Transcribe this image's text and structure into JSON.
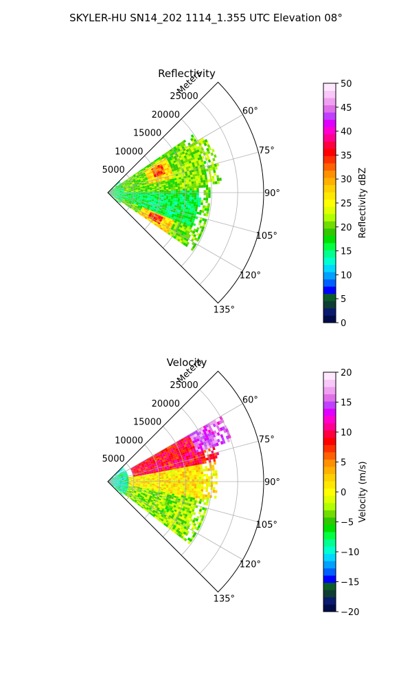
{
  "figure": {
    "title": "SKYLER-HU  SN14_202  1114_1.355 UTC Elevation 08°"
  },
  "chart_data": [
    {
      "type": "heatmap",
      "subtype": "polar-sector",
      "title": "Reflectivity",
      "radial_label": "Meters",
      "r_ticks": [
        "5000",
        "10000",
        "15000",
        "20000",
        "25000"
      ],
      "r_tick_values": [
        5000,
        10000,
        15000,
        20000,
        25000
      ],
      "rlim": [
        0,
        30000
      ],
      "theta_ticks": [
        "60°",
        "75°",
        "90°",
        "105°",
        "120°",
        "135°"
      ],
      "theta_tick_values": [
        60,
        75,
        90,
        105,
        120,
        135
      ],
      "theta_range": [
        45,
        135
      ],
      "grid": true,
      "colorbar": {
        "label": "Reflectivity dBZ",
        "ticks": [
          "0",
          "5",
          "10",
          "15",
          "20",
          "25",
          "30",
          "35",
          "40",
          "45",
          "50"
        ],
        "range": [
          0,
          50
        ],
        "colors": [
          "#000c4a",
          "#0a1a6e",
          "#0e3d33",
          "#0c5c2a",
          "#0000ff",
          "#0060ff",
          "#00a0ff",
          "#00d8ff",
          "#00ffd0",
          "#00ff90",
          "#00ff40",
          "#00e000",
          "#30c800",
          "#70dc00",
          "#b0ff00",
          "#e0ff00",
          "#ffff00",
          "#ffe800",
          "#ffd000",
          "#ffb000",
          "#ff9000",
          "#ff6000",
          "#ff3000",
          "#ff0000",
          "#ff0040",
          "#ff0090",
          "#ff00d0",
          "#e000ff",
          "#c040ff",
          "#e070e8",
          "#f0a0f0",
          "#f8c8f8",
          "#ffe8ff"
        ]
      },
      "cells": [
        {
          "az": [
            47,
            133
          ],
          "r": [
            0,
            3000
          ],
          "value": 16
        },
        {
          "az": [
            55,
            125
          ],
          "r": [
            3000,
            20000
          ],
          "value": 20
        },
        {
          "az": [
            58,
            78
          ],
          "r": [
            8000,
            13000
          ],
          "value": 27
        },
        {
          "az": [
            62,
            72
          ],
          "r": [
            9500,
            11500
          ],
          "value": 33
        },
        {
          "az": [
            108,
            125
          ],
          "r": [
            7000,
            14000
          ],
          "value": 28
        },
        {
          "az": [
            114,
            122
          ],
          "r": [
            9000,
            11500
          ],
          "value": 34
        },
        {
          "az": [
            60,
            85
          ],
          "r": [
            14000,
            22000
          ],
          "value": 21
        },
        {
          "az": [
            88,
            112
          ],
          "r": [
            3000,
            18000
          ],
          "value": 16
        }
      ]
    },
    {
      "type": "heatmap",
      "subtype": "polar-sector",
      "title": "Velocity",
      "radial_label": "Meters",
      "r_ticks": [
        "5000",
        "10000",
        "15000",
        "20000",
        "25000"
      ],
      "r_tick_values": [
        5000,
        10000,
        15000,
        20000,
        25000
      ],
      "rlim": [
        0,
        30000
      ],
      "theta_ticks": [
        "60°",
        "75°",
        "90°",
        "105°",
        "120°",
        "135°"
      ],
      "theta_tick_values": [
        60,
        75,
        90,
        105,
        120,
        135
      ],
      "theta_range": [
        45,
        135
      ],
      "grid": true,
      "colorbar": {
        "label": "Velocity (m/s)",
        "ticks": [
          "−20",
          "−15",
          "−10",
          "−5",
          "0",
          "5",
          "10",
          "15",
          "20"
        ],
        "range": [
          -20,
          20
        ],
        "colors": [
          "#000c4a",
          "#0a1a6e",
          "#0e3d33",
          "#0c5c2a",
          "#0000ff",
          "#0060ff",
          "#00a0ff",
          "#00d8ff",
          "#00ffd0",
          "#00ff90",
          "#00ff40",
          "#00e000",
          "#30c800",
          "#70dc00",
          "#b0ff00",
          "#e0ff00",
          "#ffff00",
          "#ffe800",
          "#ffd000",
          "#ffb000",
          "#ff9000",
          "#ff6000",
          "#ff3000",
          "#ff0000",
          "#ff0040",
          "#ff0090",
          "#ff00d0",
          "#e000ff",
          "#c040ff",
          "#e070e8",
          "#f0a0f0",
          "#f8c8f8",
          "#ffe8ff"
        ]
      },
      "cells": [
        {
          "az": [
            47,
            133
          ],
          "r": [
            0,
            4000
          ],
          "value": -9
        },
        {
          "az": [
            95,
            128
          ],
          "r": [
            4000,
            20000
          ],
          "value": -3
        },
        {
          "az": [
            78,
            100
          ],
          "r": [
            4000,
            21000
          ],
          "value": 1
        },
        {
          "az": [
            60,
            80
          ],
          "r": [
            5000,
            22000
          ],
          "value": 9
        },
        {
          "az": [
            60,
            72
          ],
          "r": [
            18000,
            25000
          ],
          "value": 15
        }
      ]
    }
  ]
}
